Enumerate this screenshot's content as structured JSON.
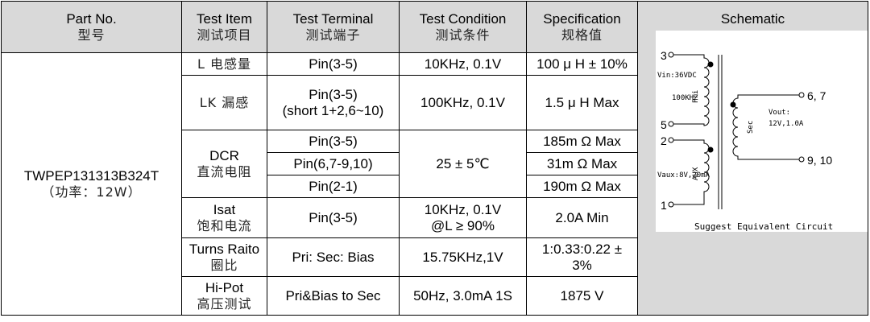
{
  "header": {
    "part_no": {
      "en": "Part No.",
      "zh": "型号"
    },
    "test_item": {
      "en": "Test Item",
      "zh": "测试项目"
    },
    "test_terminal": {
      "en": "Test Terminal",
      "zh": "测试端子"
    },
    "test_condition": {
      "en": "Test Condition",
      "zh": "测试条件"
    },
    "specification": {
      "en": "Specification",
      "zh": "规格值"
    },
    "schematic": {
      "en": "Schematic"
    }
  },
  "part": {
    "number": "TWPEP131313B324T",
    "power": "（功率：12W）"
  },
  "rows": {
    "inductance": {
      "item": "L 电感量",
      "terminal": "Pin(3-5)",
      "condition": "10KHz, 0.1V",
      "spec": "100 μ H ± 10%"
    },
    "leakage": {
      "item": "LK 漏感",
      "terminal_1": "Pin(3-5)",
      "terminal_2": "(short 1+2,6~10)",
      "condition": "100KHz, 0.1V",
      "spec": "1.5 μ H Max"
    },
    "dcr": {
      "item_en": "DCR",
      "item_zh": "直流电阻",
      "condition": "25 ± 5℃",
      "sub": [
        {
          "terminal": "Pin(3-5)",
          "spec": "185m Ω Max"
        },
        {
          "terminal": "Pin(6,7-9,10)",
          "spec": "31m Ω Max"
        },
        {
          "terminal": "Pin(2-1)",
          "spec": "190m Ω Max"
        }
      ]
    },
    "isat": {
      "item_en": "Isat",
      "item_zh": "饱和电流",
      "terminal": "Pin(3-5)",
      "condition_1": "10KHz, 0.1V",
      "condition_2": "@L ≥ 90%",
      "spec": "2.0A Min"
    },
    "turns": {
      "item_en": "Turns Raito",
      "item_zh": "圈比",
      "terminal": "Pri: Sec: Bias",
      "condition": "15.75KHz,1V",
      "spec_1": "1:0.33:0.22 ±",
      "spec_2": "3%"
    },
    "hipot": {
      "item_en": "Hi-Pot",
      "item_zh": "高压测试",
      "terminal": "Pri&Bias to Sec",
      "condition": "50Hz, 3.0mA 1S",
      "spec": "1875 V"
    }
  },
  "schematic": {
    "pins": {
      "p3": "3",
      "p5": "5",
      "p2": "2",
      "p1": "1",
      "p67": "6, 7",
      "p910": "9, 10"
    },
    "labels": {
      "vin": "Vin:36VDC",
      "freq": "100KHZ",
      "pri": "Pri",
      "sec": "Sec",
      "vout_1": "Vout:",
      "vout_2": "12V,1.0A",
      "vaux": "Vaux:8V,20mA",
      "aux": "AUX"
    },
    "caption": "Suggest Equivalent Circuit"
  }
}
